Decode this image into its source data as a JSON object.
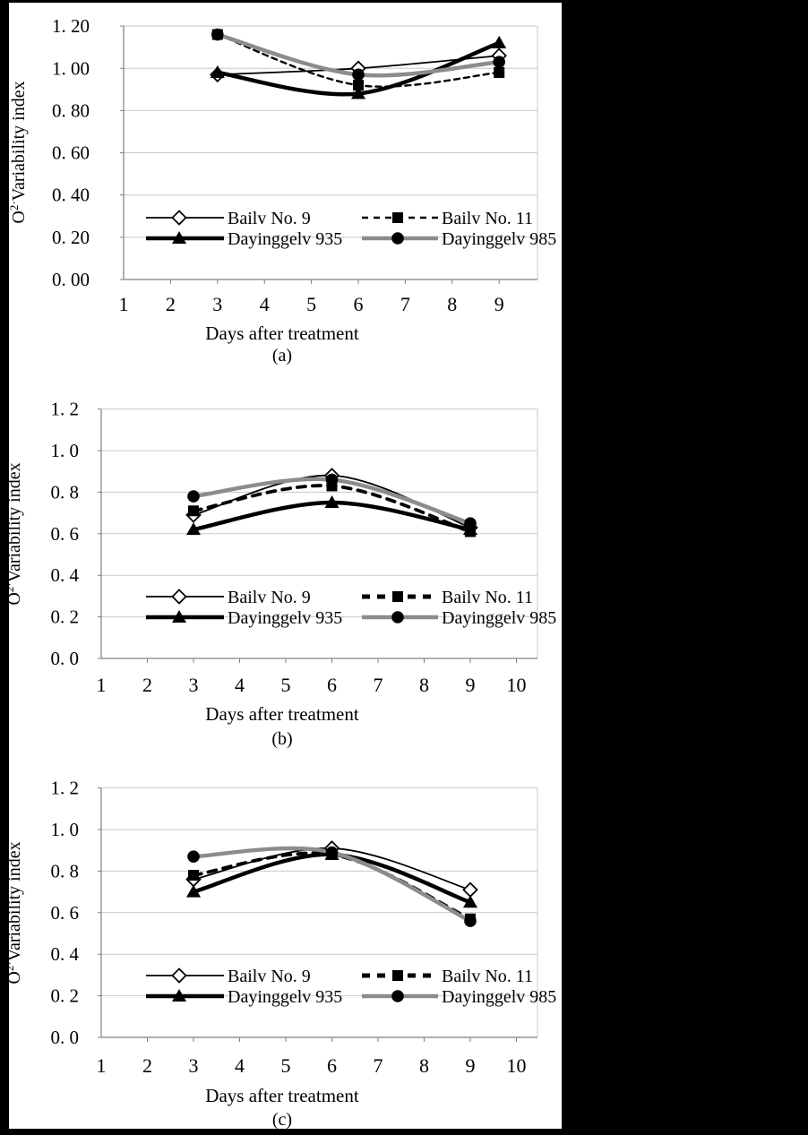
{
  "page": {
    "background": "#000000",
    "panel_background": "#ffffff"
  },
  "colors": {
    "series_black": "#000000",
    "series_gray": "#8c8c8c",
    "gridline": "#c8c8c8",
    "axis": "#808080"
  },
  "chart_data": [
    {
      "id": "a",
      "type": "line",
      "caption": "(a)",
      "xlabel": "Days after treatment",
      "ylabel": {
        "base": "O",
        "sup": "2·",
        "rest": "Variability index"
      },
      "x": [
        3,
        6,
        9
      ],
      "x_tick_labels": [
        "1",
        "2",
        "3",
        "4",
        "5",
        "6",
        "7",
        "8",
        "9"
      ],
      "y_tick_labels": [
        "1. 20",
        "1. 00",
        "0. 80",
        "0. 60",
        "0. 40",
        "0. 20",
        "0. 00"
      ],
      "ylim": [
        0,
        1.2
      ],
      "ytick_step": 0.2,
      "grid": "horizontal",
      "legend_position": "inside-lower-left",
      "series": [
        {
          "name": "Bailv No. 9",
          "values": [
            0.97,
            1.0,
            1.06
          ],
          "style": "thin-solid-black",
          "marker": "open-diamond"
        },
        {
          "name": "Bailv No. 11",
          "values": [
            1.16,
            0.92,
            0.98
          ],
          "style": "dashed-black",
          "marker": "filled-square"
        },
        {
          "name": "Dayinggelv 935",
          "values": [
            0.98,
            0.88,
            1.12
          ],
          "style": "thick-solid-black",
          "marker": "filled-triangle"
        },
        {
          "name": "Dayinggelv 985",
          "values": [
            1.16,
            0.97,
            1.03
          ],
          "style": "thick-solid-gray",
          "marker": "filled-circle"
        }
      ]
    },
    {
      "id": "b",
      "type": "line",
      "caption": "(b)",
      "xlabel": "Days after treatment",
      "ylabel": {
        "base": "O",
        "sup": "2·",
        "rest": "Variability index"
      },
      "x": [
        3,
        6,
        9
      ],
      "x_tick_labels": [
        "1",
        "2",
        "3",
        "4",
        "5",
        "6",
        "7",
        "8",
        "9",
        "10"
      ],
      "y_tick_labels": [
        "1. 2",
        "1. 0",
        "0. 8",
        "0. 6",
        "0. 4",
        "0. 2",
        "0. 0"
      ],
      "ylim": [
        0,
        1.2
      ],
      "ytick_step": 0.2,
      "grid": "horizontal",
      "legend_position": "inside-lower-left",
      "series": [
        {
          "name": "Bailv No. 9",
          "values": [
            0.69,
            0.88,
            0.63
          ],
          "style": "thin-solid-black",
          "marker": "open-diamond"
        },
        {
          "name": "Bailv No. 11",
          "values": [
            0.71,
            0.83,
            0.61
          ],
          "style": "dashed-black",
          "marker": "filled-square"
        },
        {
          "name": "Dayinggelv 935",
          "values": [
            0.62,
            0.75,
            0.62
          ],
          "style": "thick-solid-black",
          "marker": "filled-triangle"
        },
        {
          "name": "Dayinggelv 985",
          "values": [
            0.78,
            0.86,
            0.65
          ],
          "style": "thick-solid-gray",
          "marker": "filled-circle"
        }
      ]
    },
    {
      "id": "c",
      "type": "line",
      "caption": "(c)",
      "xlabel": "Days after treatment",
      "ylabel": {
        "base": "O",
        "sup": "2·",
        "rest": "Variability index"
      },
      "x": [
        3,
        6,
        9
      ],
      "x_tick_labels": [
        "1",
        "2",
        "3",
        "4",
        "5",
        "6",
        "7",
        "8",
        "9",
        "10"
      ],
      "y_tick_labels": [
        "1. 2",
        "1. 0",
        "0. 8",
        "0. 6",
        "0. 4",
        "0. 2",
        "0. 0"
      ],
      "ylim": [
        0,
        1.2
      ],
      "ytick_step": 0.2,
      "grid": "horizontal",
      "legend_position": "inside-lower-left",
      "series": [
        {
          "name": "Bailv No. 9",
          "values": [
            0.76,
            0.91,
            0.71
          ],
          "style": "thin-solid-black",
          "marker": "open-diamond"
        },
        {
          "name": "Bailv No. 11",
          "values": [
            0.78,
            0.88,
            0.57
          ],
          "style": "dashed-black",
          "marker": "filled-square"
        },
        {
          "name": "Dayinggelv 935",
          "values": [
            0.7,
            0.88,
            0.65
          ],
          "style": "thick-solid-black",
          "marker": "filled-triangle"
        },
        {
          "name": "Dayinggelv 985",
          "values": [
            0.87,
            0.89,
            0.56
          ],
          "style": "thick-solid-gray",
          "marker": "filled-circle"
        }
      ]
    }
  ]
}
